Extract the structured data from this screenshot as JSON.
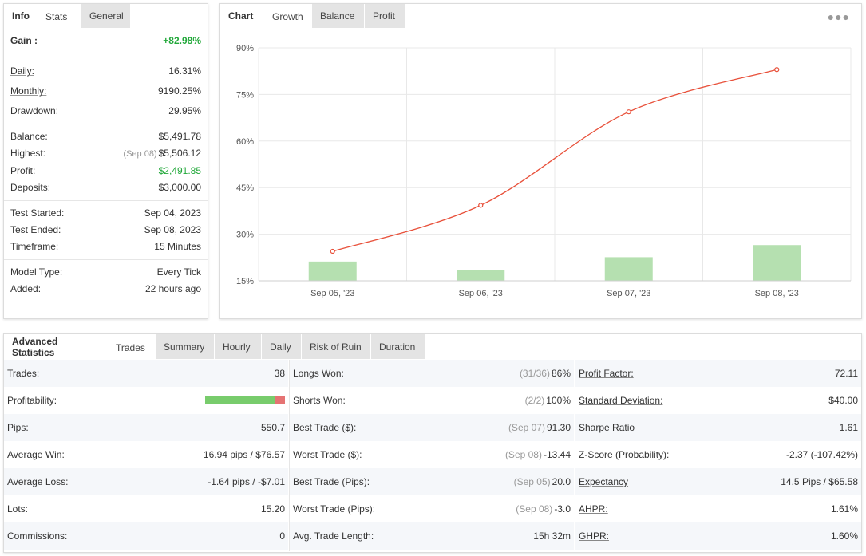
{
  "info_tabs": [
    {
      "label": "Info"
    },
    {
      "label": "Stats"
    },
    {
      "label": "General"
    }
  ],
  "info": {
    "gain_label": "Gain :",
    "gain_value": "+82.98%",
    "daily_label": "Daily:",
    "daily_value": "16.31%",
    "monthly_label": "Monthly:",
    "monthly_value": "9190.25%",
    "drawdown_label": "Drawdown:",
    "drawdown_value": "29.95%",
    "balance_label": "Balance:",
    "balance_value": "$5,491.78",
    "highest_label": "Highest:",
    "highest_date": "(Sep 08)",
    "highest_value": "$5,506.12",
    "profit_label": "Profit:",
    "profit_value": "$2,491.85",
    "deposits_label": "Deposits:",
    "deposits_value": "$3,000.00",
    "test_started_label": "Test Started:",
    "test_started_value": "Sep 04, 2023",
    "test_ended_label": "Test Ended:",
    "test_ended_value": "Sep 08, 2023",
    "timeframe_label": "Timeframe:",
    "timeframe_value": "15 Minutes",
    "model_type_label": "Model Type:",
    "model_type_value": "Every Tick",
    "added_label": "Added:",
    "added_value": "22 hours ago"
  },
  "chart_tabs": [
    {
      "label": "Chart"
    },
    {
      "label": "Growth"
    },
    {
      "label": "Balance"
    },
    {
      "label": "Profit"
    }
  ],
  "menu_icon": "more-dots-icon",
  "colors": {
    "green_text": "#22a83a",
    "line": "#e8503a",
    "bar": "#b5e0b0",
    "profit_good": "#78cc6c",
    "profit_bad": "#e57373"
  },
  "chart_data": {
    "type": "line",
    "categories": [
      "Sep 05, '23",
      "Sep 06, '23",
      "Sep 07, '23",
      "Sep 08, '23"
    ],
    "series": [
      {
        "values": [
          24.5,
          39.3,
          69.4,
          83.0
        ]
      },
      {
        "values": [
          21.2,
          18.5,
          22.6,
          26.5
        ]
      }
    ],
    "yticks": [
      "90%",
      "75%",
      "60%",
      "45%",
      "30%",
      "15%"
    ],
    "ylim": [
      15,
      90
    ],
    "title": "",
    "xlabel": "",
    "ylabel": "",
    "grid": true
  },
  "adv_tabs": [
    {
      "label": "Advanced Statistics"
    },
    {
      "label": "Trades"
    },
    {
      "label": "Summary"
    },
    {
      "label": "Hourly"
    },
    {
      "label": "Daily"
    },
    {
      "label": "Risk of Ruin"
    },
    {
      "label": "Duration"
    }
  ],
  "stats": {
    "col1": [
      {
        "label": "Trades:",
        "value": "38"
      },
      {
        "label": "Profitability:",
        "value": ""
      },
      {
        "label": "Pips:",
        "value": "550.7"
      },
      {
        "label": "Average Win:",
        "value": "16.94 pips / $76.57"
      },
      {
        "label": "Average Loss:",
        "value": "-1.64 pips / -$7.01"
      },
      {
        "label": "Lots:",
        "value": "15.20"
      },
      {
        "label": "Commissions:",
        "value": "0"
      }
    ],
    "profitability_fraction": 0.87,
    "col2": [
      {
        "label": "Longs Won:",
        "muted": "(31/36)",
        "value": "86%"
      },
      {
        "label": "Shorts Won:",
        "muted": "(2/2)",
        "value": "100%"
      },
      {
        "label": "Best Trade ($):",
        "muted": "(Sep 07)",
        "value": "91.30"
      },
      {
        "label": "Worst Trade ($):",
        "muted": "(Sep 08)",
        "value": "-13.44"
      },
      {
        "label": "Best Trade (Pips):",
        "muted": "(Sep 05)",
        "value": "20.0"
      },
      {
        "label": "Worst Trade (Pips):",
        "muted": "(Sep 08)",
        "value": "-3.0"
      },
      {
        "label": "Avg. Trade Length:",
        "muted": "",
        "value": "15h 32m"
      }
    ],
    "col3": [
      {
        "label": "Profit Factor:",
        "value": "72.11"
      },
      {
        "label": "Standard Deviation:",
        "value": "$40.00"
      },
      {
        "label": "Sharpe Ratio",
        "value": "1.61"
      },
      {
        "label": "Z-Score (Probability):",
        "value": "-2.37 (-107.42%)"
      },
      {
        "label": "Expectancy",
        "value": "14.5 Pips / $65.58"
      },
      {
        "label": "AHPR:",
        "value": "1.61%"
      },
      {
        "label": "GHPR:",
        "value": "1.60%"
      }
    ]
  }
}
